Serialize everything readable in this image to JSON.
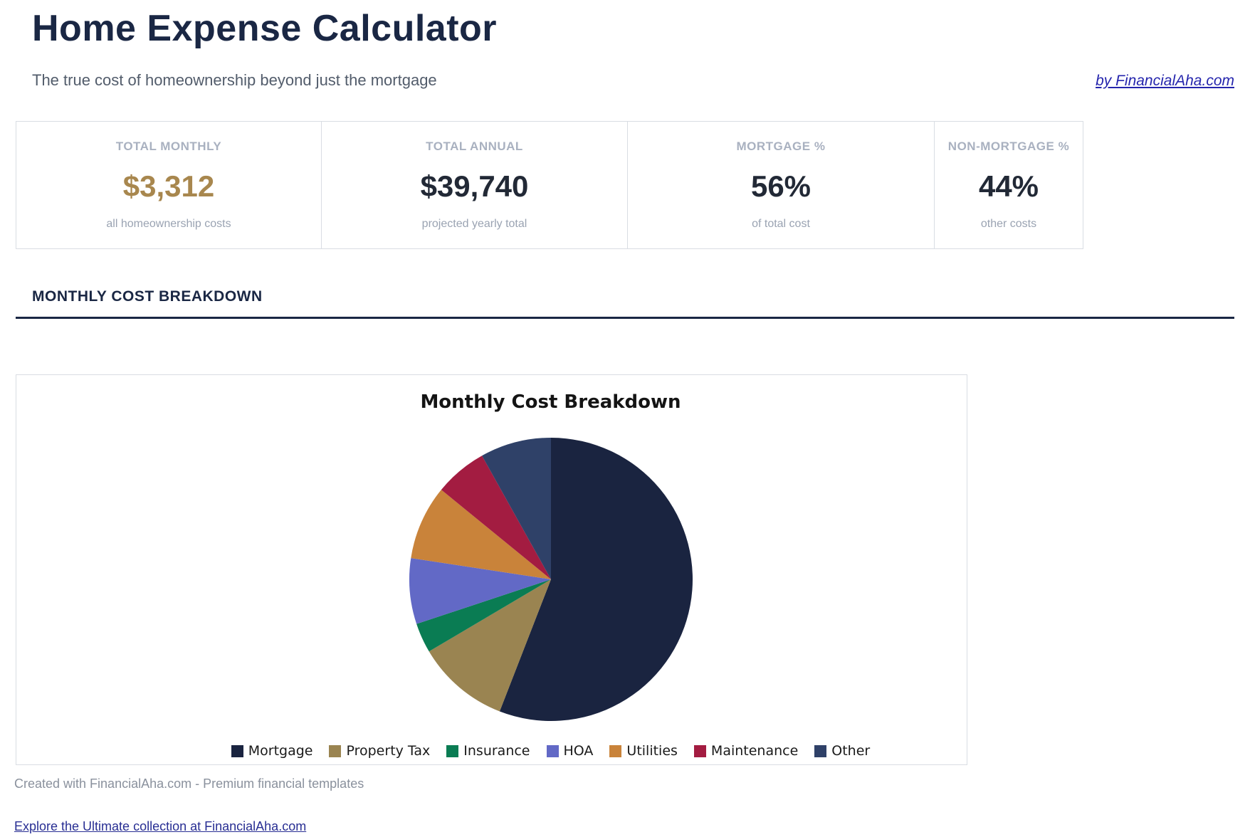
{
  "page": {
    "title": "Home Expense Calculator",
    "subtitle": "The true cost of homeownership beyond just the mortgage",
    "byline_link": "by FinancialAha.com",
    "section_heading": "MONTHLY COST BREAKDOWN",
    "footer_note": "Created with FinancialAha.com - Premium financial templates",
    "footer_link": "Explore the Ultimate collection at FinancialAha.com"
  },
  "stats": {
    "cards": [
      {
        "label": "TOTAL MONTHLY",
        "value": "$3,312",
        "caption": "all homeownership costs"
      },
      {
        "label": "TOTAL ANNUAL",
        "value": "$39,740",
        "caption": "projected yearly total"
      },
      {
        "label": "MORTGAGE %",
        "value": "56%",
        "caption": "of total cost"
      },
      {
        "label": "NON-MORTGAGE %",
        "value": "44%",
        "caption": "other costs"
      }
    ]
  },
  "chart_data": {
    "type": "pie",
    "title": "Monthly Cost Breakdown",
    "labels": [
      "Mortgage",
      "Property Tax",
      "Insurance",
      "HOA",
      "Utilities",
      "Maintenance",
      "Other"
    ],
    "values": [
      55.9,
      10.6,
      3.4,
      7.5,
      8.5,
      6.0,
      8.1
    ],
    "unit": "percent of total monthly cost (estimated from slice angles; totals $3,312/mo)",
    "colors": [
      "#1a2440",
      "#9a8451",
      "#0a7c53",
      "#6269c6",
      "#c9833a",
      "#a31c41",
      "#2f4168"
    ],
    "start_angle": "12 o'clock",
    "direction": "clockwise",
    "legend_position": "bottom",
    "grid": false
  },
  "colors": {
    "accent_navy": "#1a2744",
    "gold_value": "#a8874e",
    "card_border": "#d9dde3",
    "muted_label": "#a9b1c0",
    "byline_link_blue": "#2525ad",
    "footer_link_blue": "#282e93"
  }
}
